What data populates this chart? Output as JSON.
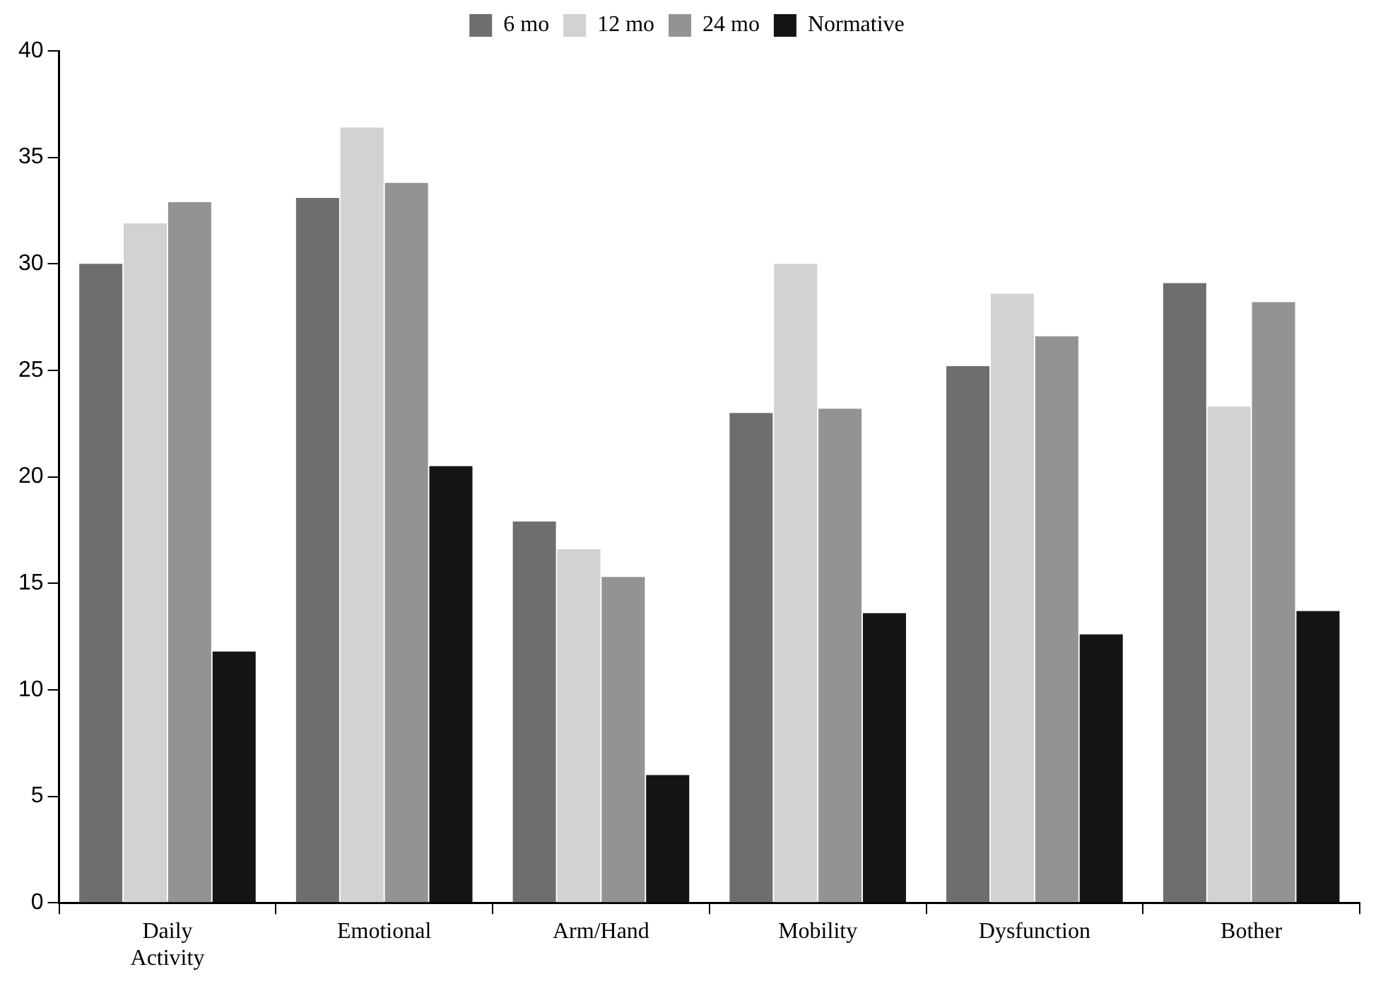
{
  "chart_data": {
    "type": "bar",
    "categories": [
      "Daily Activity",
      "Emotional",
      "Arm/Hand",
      "Mobility",
      "Dysfunction",
      "Bother"
    ],
    "series": [
      {
        "name": "6 mo",
        "color": "#6e6e6e",
        "values": [
          30.0,
          33.1,
          17.9,
          23.0,
          25.2,
          29.1
        ]
      },
      {
        "name": "12 mo",
        "color": "#d2d2d2",
        "values": [
          31.9,
          36.4,
          16.6,
          30.0,
          28.6,
          23.3
        ]
      },
      {
        "name": "24 mo",
        "color": "#939393",
        "values": [
          32.9,
          33.8,
          15.3,
          23.2,
          26.6,
          28.2
        ]
      },
      {
        "name": "Normative",
        "color": "#141414",
        "values": [
          11.8,
          20.5,
          6.0,
          13.6,
          12.6,
          13.7
        ]
      }
    ],
    "ylim": [
      0,
      40
    ],
    "yticks": [
      0,
      5,
      10,
      15,
      20,
      25,
      30,
      35,
      40
    ],
    "grid": false,
    "legend": "top"
  }
}
